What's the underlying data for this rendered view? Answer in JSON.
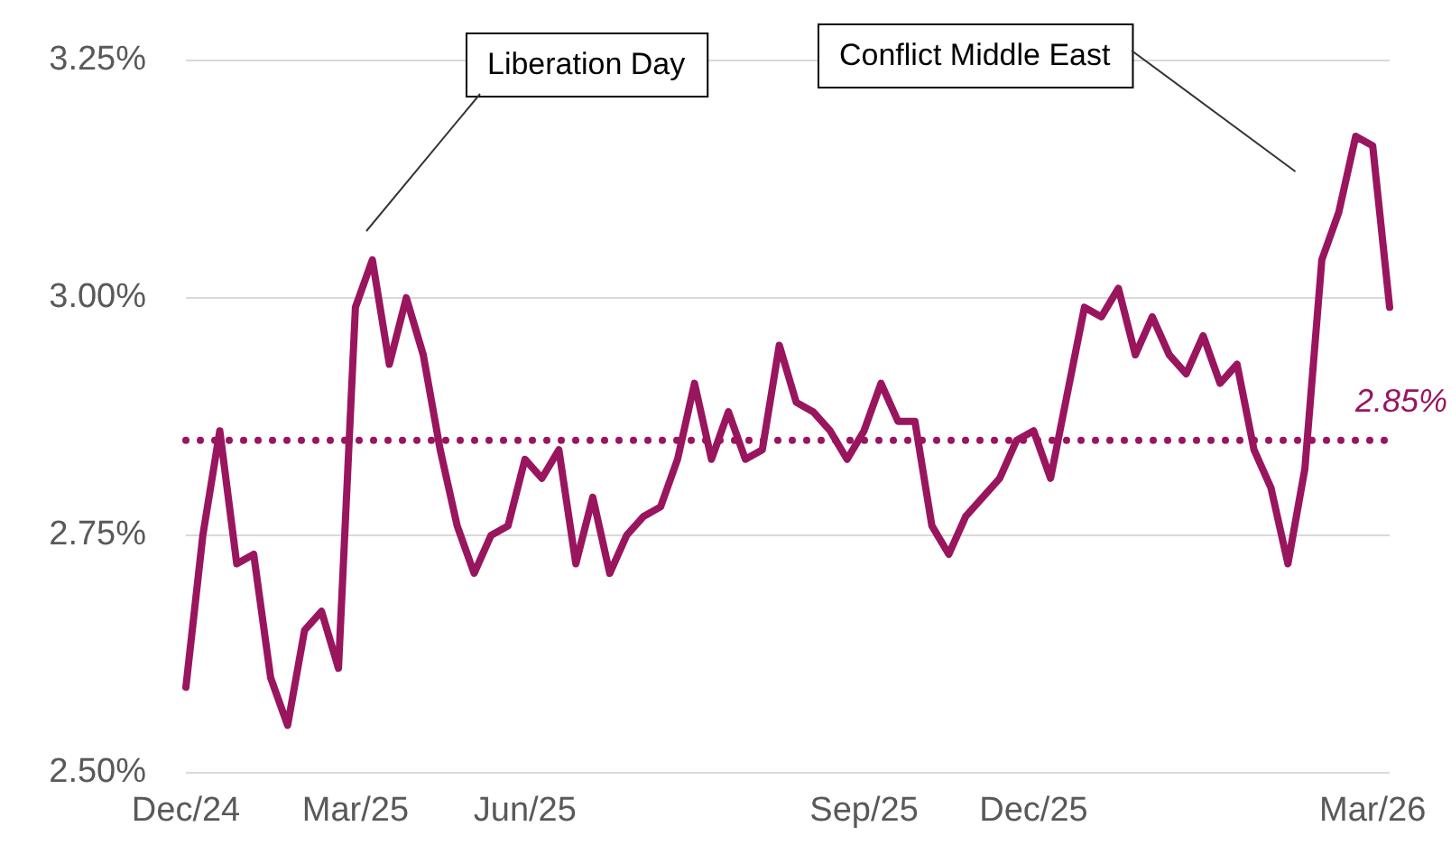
{
  "chart_data": {
    "type": "line",
    "categories": [
      "Dec/24",
      null,
      null,
      null,
      null,
      null,
      null,
      null,
      null,
      null,
      "Mar/25",
      null,
      null,
      null,
      null,
      null,
      null,
      null,
      null,
      null,
      "Jun/25",
      null,
      null,
      null,
      null,
      null,
      null,
      null,
      null,
      null,
      null,
      null,
      null,
      null,
      null,
      null,
      null,
      null,
      null,
      null,
      "Sep/25",
      null,
      null,
      null,
      null,
      null,
      null,
      null,
      null,
      null,
      "Dec/25",
      null,
      null,
      null,
      null,
      null,
      null,
      null,
      null,
      null,
      null,
      null,
      null,
      null,
      null,
      null,
      null,
      null,
      null,
      null,
      "Mar/26",
      null
    ],
    "series": [
      {
        "color": "#99155e",
        "values": [
          2.59,
          2.75,
          2.86,
          2.72,
          2.73,
          2.6,
          2.55,
          2.65,
          2.67,
          2.61,
          2.99,
          3.04,
          2.93,
          3.0,
          2.94,
          2.84,
          2.76,
          2.71,
          2.75,
          2.76,
          2.83,
          2.81,
          2.84,
          2.72,
          2.79,
          2.71,
          2.75,
          2.77,
          2.78,
          2.83,
          2.91,
          2.83,
          2.88,
          2.83,
          2.84,
          2.95,
          2.89,
          2.88,
          2.86,
          2.83,
          2.86,
          2.91,
          2.87,
          2.87,
          2.76,
          2.73,
          2.77,
          2.79,
          2.81,
          2.85,
          2.86,
          2.81,
          2.9,
          2.99,
          2.98,
          3.01,
          2.94,
          2.98,
          2.94,
          2.92,
          2.96,
          2.91,
          2.93,
          2.84,
          2.8,
          2.72,
          2.82,
          3.04,
          3.09,
          3.17,
          3.16,
          2.99
        ]
      }
    ],
    "ylim": [
      2.5,
      3.25
    ],
    "yticks": [
      {
        "value": 2.5,
        "label": "2.50%"
      },
      {
        "value": 2.75,
        "label": "2.75%"
      },
      {
        "value": 3.0,
        "label": "3.00%"
      },
      {
        "value": 3.25,
        "label": "3.25%"
      }
    ],
    "grid": "y",
    "legend": false,
    "marker": "none",
    "line_style": "solid",
    "ref_lines": [
      {
        "axis": "y",
        "value": 2.85,
        "label": "2.85%",
        "color": "#99155e",
        "line_style": "dotted"
      }
    ],
    "annotations": [
      "Liberation Day",
      "Conflict Middle East"
    ]
  }
}
